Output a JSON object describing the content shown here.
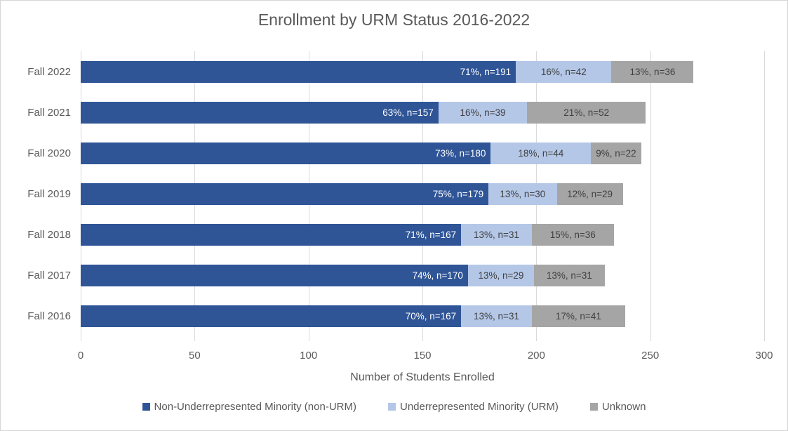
{
  "chart": {
    "title": "Enrollment by URM Status 2016-2022",
    "xlabel": "Number of Students Enrolled"
  },
  "chart_data": {
    "type": "bar",
    "orientation": "horizontal",
    "stacked": true,
    "title": "Enrollment by URM Status 2016-2022",
    "xlabel": "Number of Students Enrolled",
    "ylabel": "",
    "categories": [
      "Fall 2022",
      "Fall 2021",
      "Fall 2020",
      "Fall 2019",
      "Fall 2018",
      "Fall 2017",
      "Fall 2016"
    ],
    "series": [
      {
        "name": "Non-Underrepresented Minority (non-URM)",
        "color": "#2F5597",
        "label_color": "#FFFFFF",
        "values": [
          191,
          157,
          180,
          179,
          167,
          170,
          167
        ],
        "labels": [
          "71%, n=191",
          "63%, n=157",
          "73%, n=180",
          "75%, n=179",
          "71%, n=167",
          "74%, n=170",
          "70%, n=167"
        ]
      },
      {
        "name": "Underrepresented Minority (URM)",
        "color": "#B4C7E7",
        "label_color": "#404040",
        "values": [
          42,
          39,
          44,
          30,
          31,
          29,
          31
        ],
        "labels": [
          "16%, n=42",
          "16%, n=39",
          "18%, n=44",
          "13%, n=30",
          "13%, n=31",
          "13%, n=29",
          "13%, n=31"
        ]
      },
      {
        "name": "Unknown",
        "color": "#A5A5A5",
        "label_color": "#404040",
        "values": [
          36,
          52,
          22,
          29,
          36,
          31,
          41
        ],
        "labels": [
          "13%, n=36",
          "21%, n=52",
          "9%, n=22",
          "12%, n=29",
          "15%, n=36",
          "13%, n=31",
          "17%, n=41"
        ]
      }
    ],
    "xlim": [
      0,
      300
    ],
    "xticks": [
      0,
      50,
      100,
      150,
      200,
      250,
      300
    ],
    "grid": true,
    "legend_position": "bottom",
    "colors": {
      "text": "#595959",
      "gridline": "#D9D9D9",
      "border": "#D6D6D6",
      "background": "#FFFFFF"
    }
  }
}
